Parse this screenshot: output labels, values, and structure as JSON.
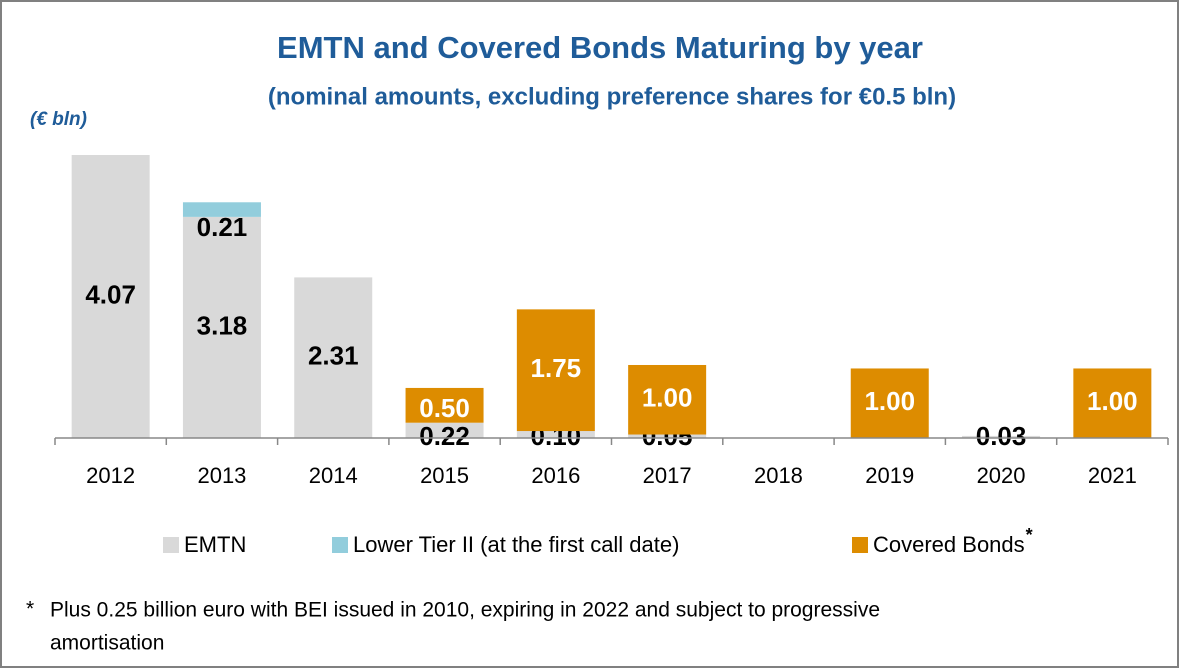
{
  "chart_data": {
    "type": "stacked_bar",
    "title": "EMTN and Covered Bonds Maturing by year",
    "subtitle": "(nominal amounts, excluding preference shares for €0.5 bln)",
    "unit_label": "(€ bln)",
    "categories": [
      "2012",
      "2013",
      "2014",
      "2015",
      "2016",
      "2017",
      "2018",
      "2019",
      "2020",
      "2021"
    ],
    "series": [
      {
        "name": "EMTN",
        "color": "#d9d9d9",
        "values": [
          4.07,
          3.18,
          2.31,
          0.22,
          0.1,
          0.05,
          null,
          null,
          0.03,
          null
        ],
        "value_labels": [
          "4.07",
          "3.18",
          "2.31",
          "0.22",
          "0.10",
          "0.05",
          null,
          null,
          "0.03",
          null
        ]
      },
      {
        "name": "Lower Tier II (at the first call date)",
        "color": "#92cddc",
        "values": [
          null,
          0.21,
          null,
          null,
          null,
          null,
          null,
          null,
          null,
          null
        ],
        "value_labels": [
          null,
          "0.21",
          null,
          null,
          null,
          null,
          null,
          null,
          null,
          null
        ]
      },
      {
        "name": "Covered Bonds",
        "color": "#dd8c00",
        "legend_marker": "*",
        "values": [
          null,
          null,
          null,
          0.5,
          1.75,
          1.0,
          null,
          1.0,
          null,
          1.0
        ],
        "value_labels": [
          null,
          null,
          null,
          "0.50",
          "1.75",
          "1.00",
          null,
          "1.00",
          null,
          "1.00"
        ]
      }
    ],
    "legend": "bottom",
    "footnote": {
      "marker": "*",
      "lines": [
        "Plus 0.25 billion euro with BEI issued in 2010, expiring in 2022 and subject to progressive",
        "amortisation"
      ]
    }
  }
}
